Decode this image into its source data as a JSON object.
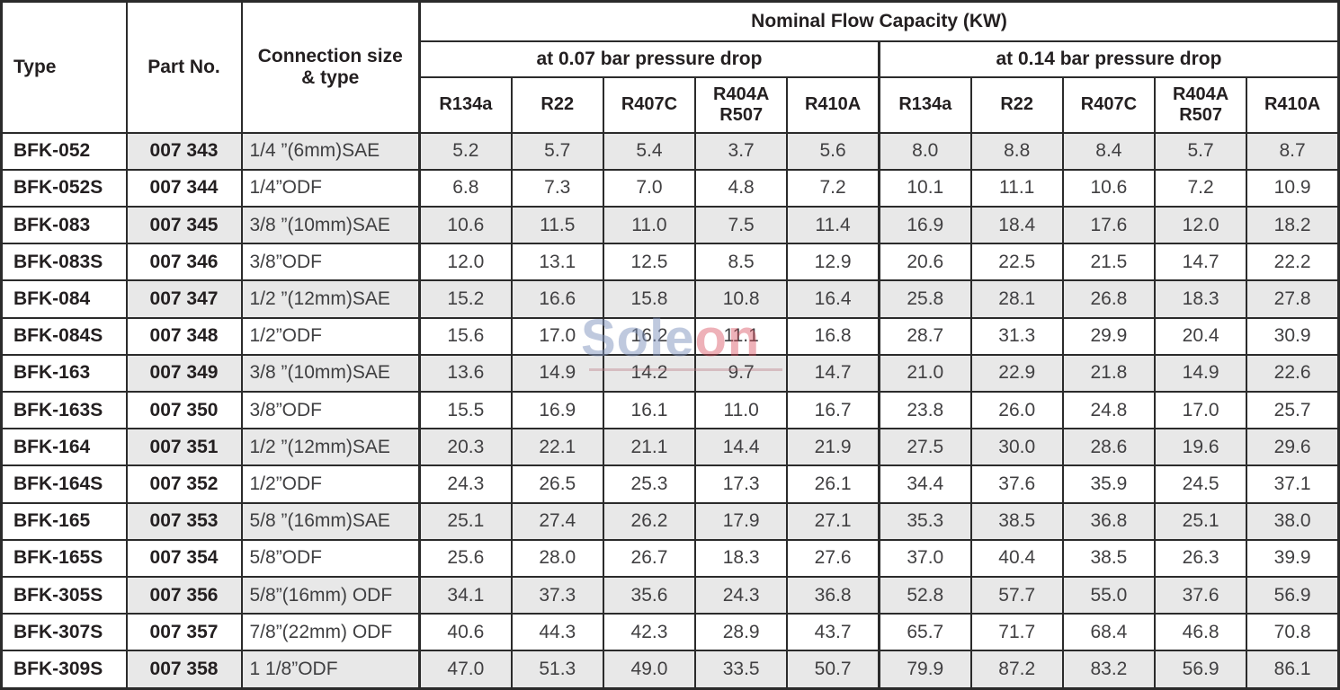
{
  "header": {
    "type": "Type",
    "part_no": "Part No.",
    "connection": "Connection size\n& type",
    "capacity_title": "Nominal Flow Capacity (KW)",
    "groups": [
      "at 0.07 bar pressure drop",
      "at 0.14 bar pressure drop"
    ],
    "refrigerants": [
      "R134a",
      "R22",
      "R407C",
      "R404A\nR507",
      "R410A"
    ]
  },
  "rows": [
    {
      "type": "BFK-052",
      "part_no": "007 343",
      "connection": "1/4 ”(6mm)SAE",
      "drop_007": [
        "5.2",
        "5.7",
        "5.4",
        "3.7",
        "5.6"
      ],
      "drop_014": [
        "8.0",
        "8.8",
        "8.4",
        "5.7",
        "8.7"
      ]
    },
    {
      "type": "BFK-052S",
      "part_no": "007 344",
      "connection": "1/4”ODF",
      "drop_007": [
        "6.8",
        "7.3",
        "7.0",
        "4.8",
        "7.2"
      ],
      "drop_014": [
        "10.1",
        "11.1",
        "10.6",
        "7.2",
        "10.9"
      ]
    },
    {
      "type": "BFK-083",
      "part_no": "007 345",
      "connection": "3/8 ”(10mm)SAE",
      "drop_007": [
        "10.6",
        "11.5",
        "11.0",
        "7.5",
        "11.4"
      ],
      "drop_014": [
        "16.9",
        "18.4",
        "17.6",
        "12.0",
        "18.2"
      ]
    },
    {
      "type": "BFK-083S",
      "part_no": "007 346",
      "connection": "3/8”ODF",
      "drop_007": [
        "12.0",
        "13.1",
        "12.5",
        "8.5",
        "12.9"
      ],
      "drop_014": [
        "20.6",
        "22.5",
        "21.5",
        "14.7",
        "22.2"
      ]
    },
    {
      "type": "BFK-084",
      "part_no": "007 347",
      "connection": "1/2 ”(12mm)SAE",
      "drop_007": [
        "15.2",
        "16.6",
        "15.8",
        "10.8",
        "16.4"
      ],
      "drop_014": [
        "25.8",
        "28.1",
        "26.8",
        "18.3",
        "27.8"
      ]
    },
    {
      "type": "BFK-084S",
      "part_no": "007 348",
      "connection": "1/2”ODF",
      "drop_007": [
        "15.6",
        "17.0",
        "16.2",
        "11.1",
        "16.8"
      ],
      "drop_014": [
        "28.7",
        "31.3",
        "29.9",
        "20.4",
        "30.9"
      ]
    },
    {
      "type": "BFK-163",
      "part_no": "007 349",
      "connection": "3/8 ”(10mm)SAE",
      "drop_007": [
        "13.6",
        "14.9",
        "14.2",
        "9.7",
        "14.7"
      ],
      "drop_014": [
        "21.0",
        "22.9",
        "21.8",
        "14.9",
        "22.6"
      ]
    },
    {
      "type": "BFK-163S",
      "part_no": "007 350",
      "connection": "3/8”ODF",
      "drop_007": [
        "15.5",
        "16.9",
        "16.1",
        "11.0",
        "16.7"
      ],
      "drop_014": [
        "23.8",
        "26.0",
        "24.8",
        "17.0",
        "25.7"
      ]
    },
    {
      "type": "BFK-164",
      "part_no": "007 351",
      "connection": "1/2 ”(12mm)SAE",
      "drop_007": [
        "20.3",
        "22.1",
        "21.1",
        "14.4",
        "21.9"
      ],
      "drop_014": [
        "27.5",
        "30.0",
        "28.6",
        "19.6",
        "29.6"
      ]
    },
    {
      "type": "BFK-164S",
      "part_no": "007 352",
      "connection": "1/2”ODF",
      "drop_007": [
        "24.3",
        "26.5",
        "25.3",
        "17.3",
        "26.1"
      ],
      "drop_014": [
        "34.4",
        "37.6",
        "35.9",
        "24.5",
        "37.1"
      ]
    },
    {
      "type": "BFK-165",
      "part_no": "007 353",
      "connection": "5/8 ”(16mm)SAE",
      "drop_007": [
        "25.1",
        "27.4",
        "26.2",
        "17.9",
        "27.1"
      ],
      "drop_014": [
        "35.3",
        "38.5",
        "36.8",
        "25.1",
        "38.0"
      ]
    },
    {
      "type": "BFK-165S",
      "part_no": "007 354",
      "connection": "5/8”ODF",
      "drop_007": [
        "25.6",
        "28.0",
        "26.7",
        "18.3",
        "27.6"
      ],
      "drop_014": [
        "37.0",
        "40.4",
        "38.5",
        "26.3",
        "39.9"
      ]
    },
    {
      "type": "BFK-305S",
      "part_no": "007 356",
      "connection": "5/8”(16mm) ODF",
      "drop_007": [
        "34.1",
        "37.3",
        "35.6",
        "24.3",
        "36.8"
      ],
      "drop_014": [
        "52.8",
        "57.7",
        "55.0",
        "37.6",
        "56.9"
      ]
    },
    {
      "type": "BFK-307S",
      "part_no": "007 357",
      "connection": "7/8”(22mm) ODF",
      "drop_007": [
        "40.6",
        "44.3",
        "42.3",
        "28.9",
        "43.7"
      ],
      "drop_014": [
        "65.7",
        "71.7",
        "68.4",
        "46.8",
        "70.8"
      ]
    },
    {
      "type": "BFK-309S",
      "part_no": "007 358",
      "connection": "1 1/8”ODF",
      "drop_007": [
        "47.0",
        "51.3",
        "49.0",
        "33.5",
        "50.7"
      ],
      "drop_014": [
        "79.9",
        "87.2",
        "83.2",
        "56.9",
        "86.1"
      ]
    }
  ],
  "watermark": {
    "text_blue": "Sole",
    "text_red": "on"
  },
  "colors": {
    "row_shade": "#e8e8e8",
    "border": "#2b2b2b",
    "header_text": "#231f20",
    "value_text": "#414042",
    "watermark_blue": "#8094be",
    "watermark_red": "#d64655"
  }
}
